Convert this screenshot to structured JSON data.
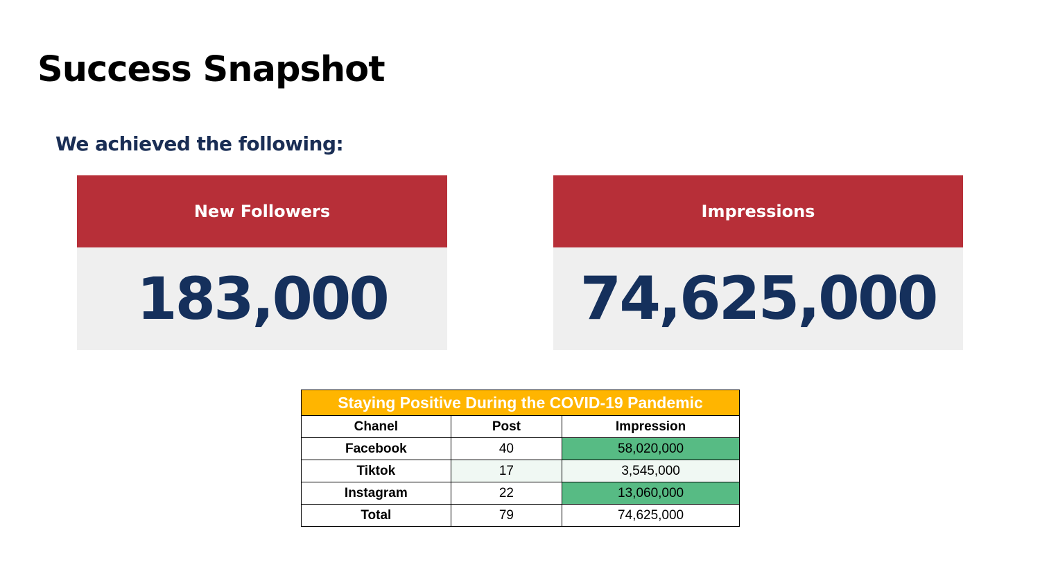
{
  "slide": {
    "title": "Success Snapshot",
    "subtitle": "We achieved the following:"
  },
  "stats": [
    {
      "label": "New Followers",
      "value": "183,000"
    },
    {
      "label": "Impressions",
      "value": "74,625,000"
    }
  ],
  "table": {
    "title": "Staying Positive During the COVID-19 Pandemic",
    "headers": [
      "Chanel",
      "Post",
      "Impression"
    ],
    "rows": [
      {
        "channel": "Facebook",
        "post": "40",
        "impression": "58,020,000"
      },
      {
        "channel": "Tiktok",
        "post": "17",
        "impression": "3,545,000"
      },
      {
        "channel": "Instagram",
        "post": "22",
        "impression": "13,060,000"
      },
      {
        "channel": "Total",
        "post": "79",
        "impression": "74,625,000"
      }
    ]
  },
  "colors": {
    "card_header": "#b72f38",
    "card_body": "#efefef",
    "stat_text": "#15305c",
    "table_title": "#ffb500",
    "highlight_strong": "#57bb84",
    "highlight_light": "#f0f8f3"
  }
}
